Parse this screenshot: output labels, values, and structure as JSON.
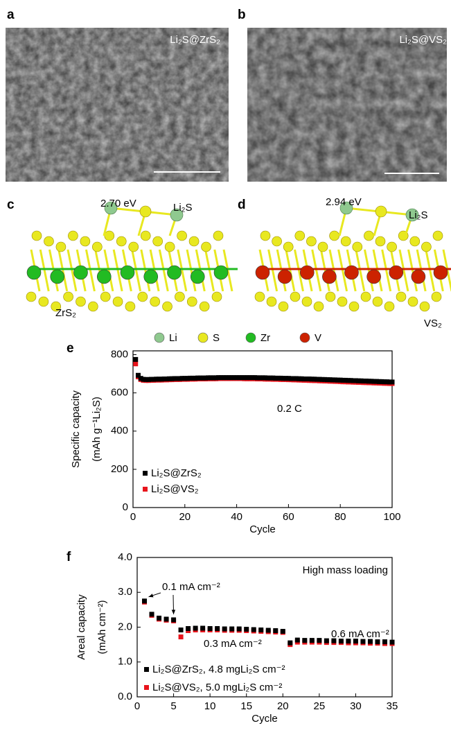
{
  "figure": {
    "panel_labels": [
      "a",
      "b",
      "c",
      "d",
      "e",
      "f"
    ],
    "images": [
      {
        "label": "Li₂S@ZrS₂"
      },
      {
        "label": "Li₂S@VS₂"
      }
    ],
    "structures": [
      {
        "energy": "2.70 eV",
        "adsorbate": "Li₂S",
        "substrate": "ZrS₂"
      },
      {
        "energy": "2.94 eV",
        "adsorbate": "Li₂S",
        "substrate": "VS₂"
      }
    ],
    "atom_legend": [
      {
        "name": "Li",
        "color": "#8fc98f"
      },
      {
        "name": "S",
        "color": "#e8e820"
      },
      {
        "name": "Zr",
        "color": "#22bb22"
      },
      {
        "name": "V",
        "color": "#cc2200"
      }
    ]
  },
  "chart_data": [
    {
      "type": "scatter",
      "xlabel": "Cycle",
      "ylabel": [
        "Specific capacity",
        "(mAh g⁻¹Li₂S)"
      ],
      "annotations": [
        "0.2 C"
      ],
      "xlim": [
        0,
        100
      ],
      "xticks": [
        0,
        20,
        40,
        60,
        80,
        100
      ],
      "ylim": [
        0,
        820
      ],
      "yticks": [
        0,
        200,
        400,
        600,
        800
      ],
      "x": [
        1,
        2,
        3,
        4,
        5,
        6,
        7,
        8,
        9,
        10,
        11,
        12,
        13,
        14,
        15,
        16,
        17,
        18,
        19,
        20,
        21,
        22,
        23,
        24,
        25,
        26,
        27,
        28,
        29,
        30,
        31,
        32,
        33,
        34,
        35,
        36,
        37,
        38,
        39,
        40,
        41,
        42,
        43,
        44,
        45,
        46,
        47,
        48,
        49,
        50,
        51,
        52,
        53,
        54,
        55,
        56,
        57,
        58,
        59,
        60,
        61,
        62,
        63,
        64,
        65,
        66,
        67,
        68,
        69,
        70,
        71,
        72,
        73,
        74,
        75,
        76,
        77,
        78,
        79,
        80,
        81,
        82,
        83,
        84,
        85,
        86,
        87,
        88,
        89,
        90,
        91,
        92,
        93,
        94,
        95,
        96,
        97,
        98,
        99,
        100
      ],
      "series": [
        {
          "name": "Li₂S@ZrS₂",
          "color": "#000000",
          "values": [
            775,
            692,
            676,
            671,
            670,
            670,
            671,
            671,
            672,
            672,
            672,
            673,
            673,
            674,
            674,
            675,
            675,
            675,
            676,
            676,
            676,
            677,
            677,
            677,
            678,
            678,
            678,
            678,
            679,
            679,
            679,
            679,
            680,
            680,
            680,
            680,
            680,
            680,
            680,
            680,
            680,
            680,
            680,
            680,
            680,
            680,
            680,
            679,
            679,
            679,
            679,
            678,
            678,
            678,
            677,
            677,
            677,
            676,
            676,
            676,
            675,
            675,
            675,
            674,
            674,
            673,
            673,
            673,
            672,
            672,
            671,
            671,
            670,
            670,
            669,
            669,
            668,
            668,
            667,
            667,
            666,
            666,
            665,
            665,
            664,
            664,
            663,
            663,
            662,
            662,
            661,
            661,
            660,
            660,
            659,
            659,
            658,
            658,
            657,
            657
          ]
        },
        {
          "name": "Li₂S@VS₂",
          "color": "#e8141c",
          "values": [
            752,
            684,
            670,
            666,
            665,
            665,
            666,
            666,
            667,
            667,
            667,
            668,
            668,
            669,
            669,
            670,
            670,
            670,
            671,
            671,
            671,
            672,
            672,
            672,
            673,
            673,
            673,
            673,
            674,
            674,
            674,
            674,
            675,
            675,
            675,
            675,
            675,
            675,
            675,
            675,
            675,
            675,
            674,
            674,
            674,
            674,
            674,
            673,
            673,
            673,
            672,
            672,
            672,
            671,
            671,
            671,
            670,
            670,
            670,
            669,
            669,
            668,
            668,
            667,
            667,
            666,
            666,
            665,
            665,
            664,
            664,
            663,
            663,
            662,
            662,
            661,
            661,
            660,
            660,
            659,
            658,
            658,
            657,
            657,
            656,
            656,
            655,
            655,
            654,
            654,
            653,
            653,
            652,
            652,
            651,
            651,
            650,
            650,
            649,
            649
          ]
        }
      ]
    },
    {
      "type": "scatter",
      "xlabel": "Cycle",
      "ylabel": [
        "Areal capacity",
        "(mAh cm⁻²)"
      ],
      "annotations": [
        "High mass loading",
        "0.1 mA cm⁻²",
        "0.3 mA cm⁻²",
        "0.6 mA cm⁻²"
      ],
      "xlim": [
        0,
        35
      ],
      "xticks": [
        0,
        5,
        10,
        15,
        20,
        25,
        30,
        35
      ],
      "ylim": [
        0,
        4
      ],
      "yticks": [
        {
          "value": 0,
          "label": "0.0"
        },
        {
          "value": 1,
          "label": "1.0"
        },
        {
          "value": 2,
          "label": "2.0"
        },
        {
          "value": 3,
          "label": "3.0"
        },
        {
          "value": 4,
          "label": "4.0"
        }
      ],
      "x": [
        1,
        2,
        3,
        4,
        5,
        6,
        7,
        8,
        9,
        10,
        11,
        12,
        13,
        14,
        15,
        16,
        17,
        18,
        19,
        20,
        21,
        22,
        23,
        24,
        25,
        26,
        27,
        28,
        29,
        30,
        31,
        32,
        33,
        34,
        35
      ],
      "series": [
        {
          "name": "Li₂S@ZrS₂, 4.8 mgLi₂S cm⁻²",
          "color": "#000000",
          "values": [
            2.75,
            2.37,
            2.26,
            2.23,
            2.21,
            1.92,
            1.96,
            1.97,
            1.97,
            1.96,
            1.96,
            1.95,
            1.95,
            1.95,
            1.94,
            1.93,
            1.92,
            1.91,
            1.9,
            1.88,
            1.55,
            1.63,
            1.62,
            1.62,
            1.62,
            1.61,
            1.61,
            1.6,
            1.6,
            1.6,
            1.59,
            1.59,
            1.58,
            1.58,
            1.57
          ]
        },
        {
          "name": "Li₂S@VS₂, 5.0 mgLi₂S cm⁻²",
          "color": "#e8141c",
          "values": [
            2.72,
            2.34,
            2.23,
            2.2,
            2.18,
            1.72,
            1.9,
            1.92,
            1.92,
            1.92,
            1.92,
            1.91,
            1.91,
            1.91,
            1.9,
            1.89,
            1.88,
            1.87,
            1.86,
            1.85,
            1.5,
            1.57,
            1.57,
            1.57,
            1.57,
            1.56,
            1.56,
            1.56,
            1.55,
            1.55,
            1.55,
            1.54,
            1.54,
            1.53,
            1.53
          ]
        }
      ]
    }
  ]
}
